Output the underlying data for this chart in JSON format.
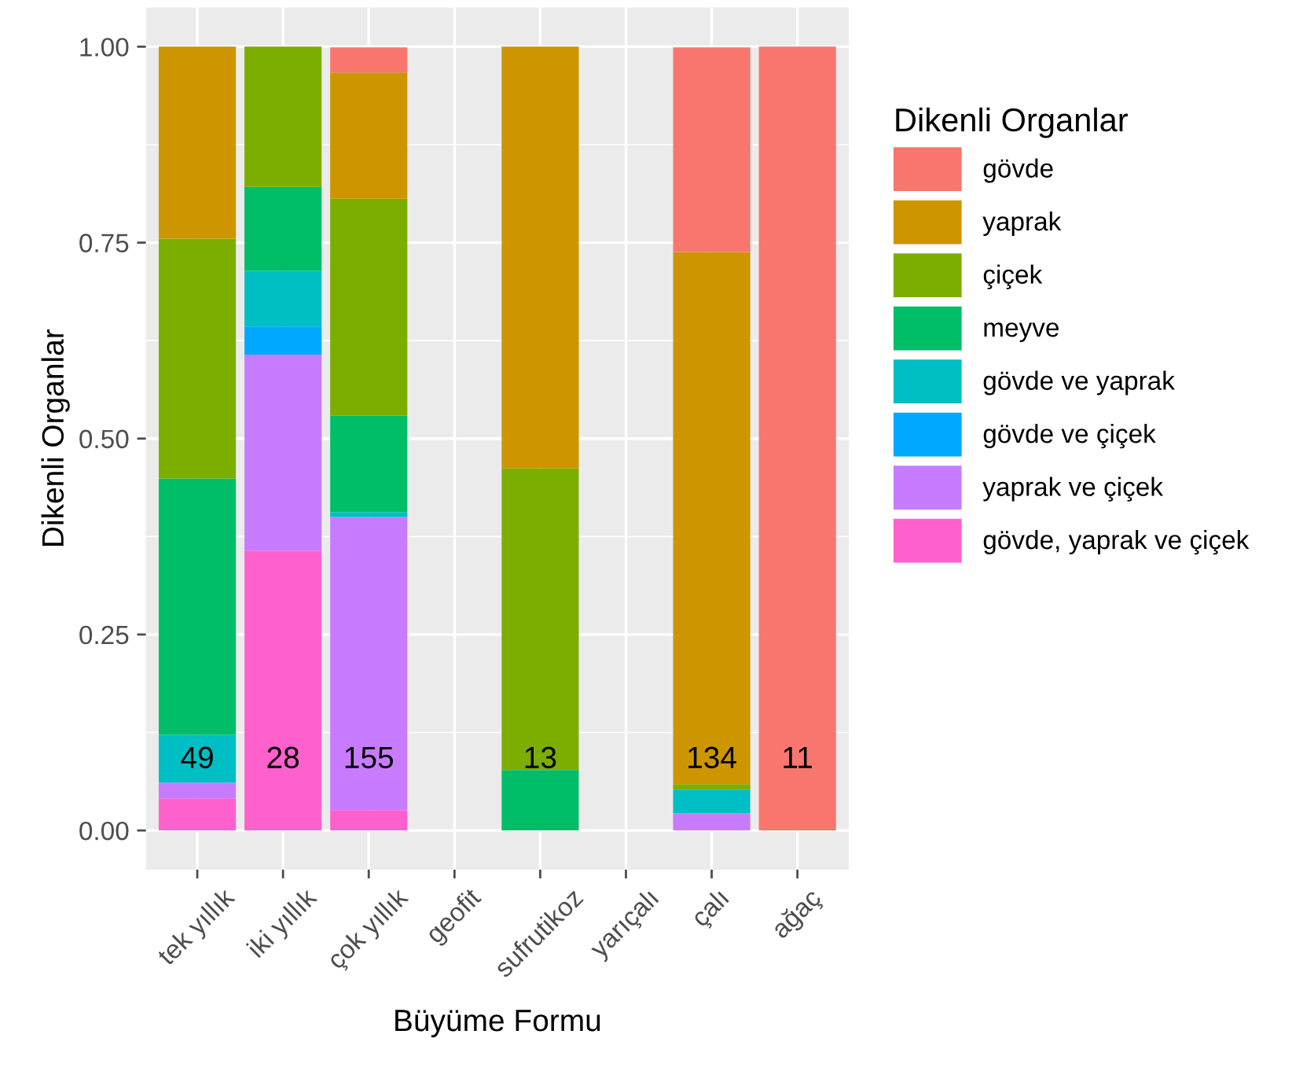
{
  "chart_data": {
    "type": "bar",
    "stacked": true,
    "xlabel": "Büyüme Formu",
    "ylabel": "Dikenli Organlar",
    "legend_title": "Dikenli Organlar",
    "legend": "right",
    "grid": true,
    "categories": [
      "tek yıllık",
      "iki yıllık",
      "çok yıllık",
      "geofit",
      "sufrutikoz",
      "yarıçalı",
      "çalı",
      "ağaç"
    ],
    "ylim": [
      -0.05,
      1.05
    ],
    "yticks": [
      {
        "value": 0,
        "label": "0.00"
      },
      {
        "value": 0.25,
        "label": "0.25"
      },
      {
        "value": 0.5,
        "label": "0.50"
      },
      {
        "value": 0.75,
        "label": "0.75"
      },
      {
        "value": 1,
        "label": "1.00"
      }
    ],
    "series": [
      {
        "name": "gövde, yaprak ve çiçek",
        "color": "#ff61cc",
        "values": [
          0.041,
          0.357,
          0.026,
          null,
          null,
          null,
          null,
          null
        ]
      },
      {
        "name": "yaprak ve çiçek",
        "color": "#c77cff",
        "values": [
          0.02,
          0.25,
          0.374,
          null,
          null,
          null,
          0.022,
          null
        ]
      },
      {
        "name": "gövde ve çiçek",
        "color": "#00a9ff",
        "values": [
          null,
          0.036,
          null,
          null,
          null,
          null,
          null,
          null
        ]
      },
      {
        "name": "gövde ve yaprak",
        "color": "#00bfc4",
        "values": [
          0.061,
          0.071,
          0.006,
          null,
          null,
          null,
          0.03,
          null
        ]
      },
      {
        "name": "meyve",
        "color": "#00be67",
        "values": [
          0.327,
          0.107,
          0.123,
          null,
          0.077,
          null,
          null,
          null
        ]
      },
      {
        "name": "çiçek",
        "color": "#7cae00",
        "values": [
          0.306,
          0.179,
          0.277,
          null,
          0.385,
          null,
          0.007,
          null
        ]
      },
      {
        "name": "yaprak",
        "color": "#cd9600",
        "values": [
          0.245,
          null,
          0.161,
          null,
          0.538,
          null,
          0.679,
          null
        ]
      },
      {
        "name": "gövde",
        "color": "#f8766d",
        "values": [
          null,
          null,
          0.032,
          null,
          null,
          null,
          0.261,
          1
        ]
      }
    ],
    "annotations": [
      "49",
      "28",
      "155",
      "13",
      "134",
      "11"
    ]
  }
}
